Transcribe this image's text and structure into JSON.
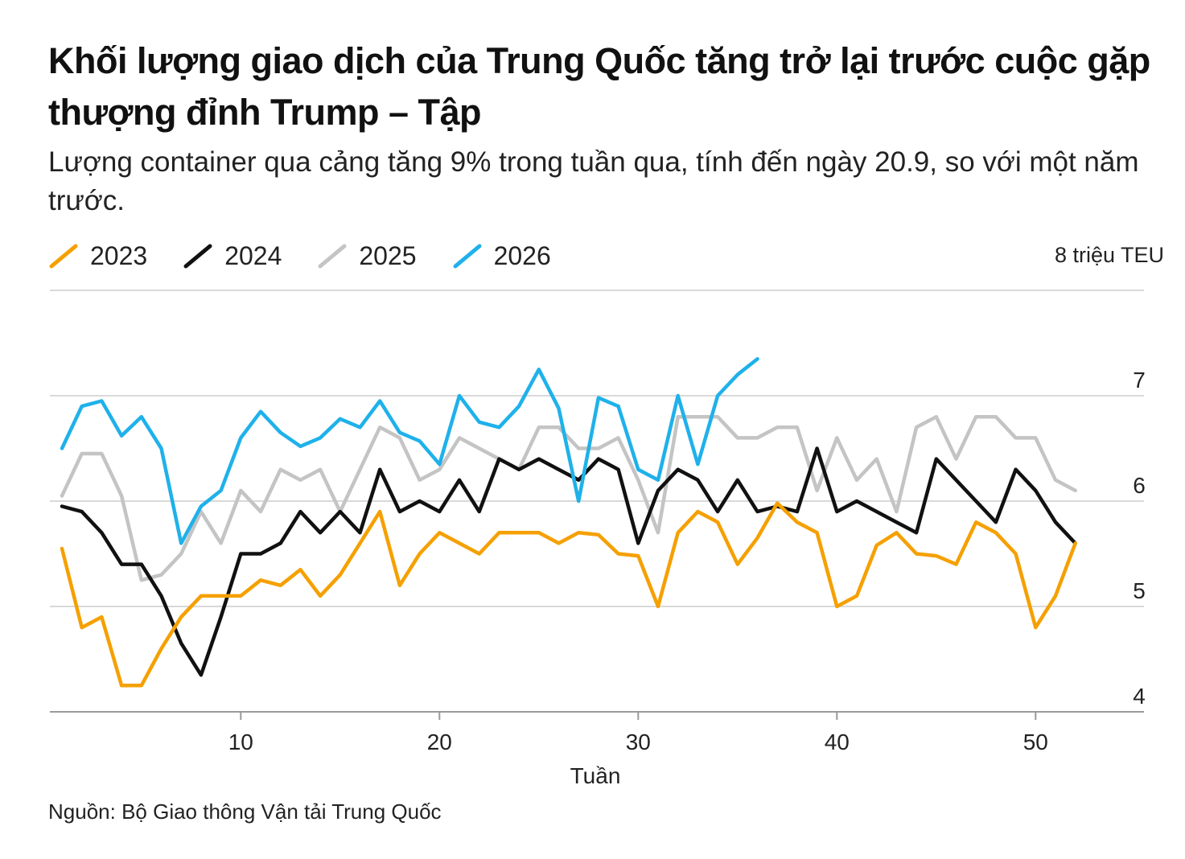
{
  "header": {
    "title": "Khối lượng giao dịch của Trung Quốc tăng trở lại trước cuộc gặp thượng đỉnh Trump – Tập",
    "subtitle": "Lượng container qua cảng tăng 9% trong tuần qua, tính đến ngày 20.9, so với một năm trước.",
    "unit": "8 triệu TEU"
  },
  "footer": {
    "source": "Nguồn: Bộ Giao thông Vận tải Trung Quốc"
  },
  "legend": [
    {
      "label": "2023",
      "color": "#F5A000"
    },
    {
      "label": "2024",
      "color": "#111111"
    },
    {
      "label": "2025",
      "color": "#C4C4C4"
    },
    {
      "label": "2026",
      "color": "#1FB1EA"
    }
  ],
  "chart_data": {
    "type": "line",
    "title": "Khối lượng giao dịch của Trung Quốc tăng trở lại trước cuộc gặp thượng đỉnh Trump – Tập",
    "xlabel": "Tuần",
    "ylabel": "",
    "xlim": [
      1,
      52
    ],
    "ylim": [
      4,
      8
    ],
    "xticks": [
      10,
      20,
      30,
      40,
      50
    ],
    "yticks": [
      4,
      5,
      6,
      7,
      8
    ],
    "ytick_labels": [
      "4",
      "5",
      "6",
      "7",
      ""
    ],
    "grid": true,
    "legend_position": "top-left",
    "series": [
      {
        "name": "2023",
        "color": "#F5A000",
        "x": [
          1,
          2,
          3,
          4,
          5,
          6,
          7,
          8,
          9,
          10,
          11,
          12,
          13,
          14,
          15,
          16,
          17,
          18,
          19,
          20,
          21,
          22,
          23,
          24,
          25,
          26,
          27,
          28,
          29,
          30,
          31,
          32,
          33,
          34,
          35,
          36,
          37,
          38,
          39,
          40,
          41,
          42,
          43,
          44,
          45,
          46,
          47,
          48,
          49,
          50,
          51,
          52
        ],
        "values": [
          5.55,
          4.8,
          4.9,
          4.25,
          4.25,
          4.6,
          4.9,
          5.1,
          5.1,
          5.1,
          5.25,
          5.2,
          5.35,
          5.1,
          5.3,
          5.6,
          5.9,
          5.2,
          5.5,
          5.7,
          5.6,
          5.5,
          5.7,
          5.7,
          5.7,
          5.6,
          5.7,
          5.68,
          5.5,
          5.48,
          5.0,
          5.7,
          5.9,
          5.8,
          5.4,
          5.65,
          5.98,
          5.8,
          5.7,
          5.0,
          5.1,
          5.58,
          5.7,
          5.5,
          5.48,
          5.4,
          5.8,
          5.7,
          5.5,
          4.8,
          5.1,
          5.6
        ]
      },
      {
        "name": "2024",
        "color": "#111111",
        "x": [
          1,
          2,
          3,
          4,
          5,
          6,
          7,
          8,
          9,
          10,
          11,
          12,
          13,
          14,
          15,
          16,
          17,
          18,
          19,
          20,
          21,
          22,
          23,
          24,
          25,
          26,
          27,
          28,
          29,
          30,
          31,
          32,
          33,
          34,
          35,
          36,
          37,
          38,
          39,
          40,
          41,
          42,
          43,
          44,
          45,
          46,
          47,
          48,
          49,
          50,
          51,
          52
        ],
        "values": [
          5.95,
          5.9,
          5.7,
          5.4,
          5.4,
          5.1,
          4.65,
          4.35,
          4.9,
          5.5,
          5.5,
          5.6,
          5.9,
          5.7,
          5.9,
          5.7,
          6.3,
          5.9,
          6.0,
          5.9,
          6.2,
          5.9,
          6.4,
          6.3,
          6.4,
          6.3,
          6.2,
          6.4,
          6.3,
          5.6,
          6.1,
          6.3,
          6.2,
          5.9,
          6.2,
          5.9,
          5.95,
          5.9,
          6.5,
          5.9,
          6.0,
          5.9,
          5.8,
          5.7,
          6.4,
          6.2,
          6.0,
          5.8,
          6.3,
          6.1,
          5.8,
          5.6
        ]
      },
      {
        "name": "2025",
        "color": "#C4C4C4",
        "x": [
          1,
          2,
          3,
          4,
          5,
          6,
          7,
          8,
          9,
          10,
          11,
          12,
          13,
          14,
          15,
          16,
          17,
          18,
          19,
          20,
          21,
          22,
          23,
          24,
          25,
          26,
          27,
          28,
          29,
          30,
          31,
          32,
          33,
          34,
          35,
          36,
          37,
          38,
          39,
          40,
          41,
          42,
          43,
          44,
          45,
          46,
          47,
          48,
          49,
          50,
          51,
          52
        ],
        "values": [
          6.05,
          6.45,
          6.45,
          6.05,
          5.25,
          5.3,
          5.5,
          5.9,
          5.6,
          6.1,
          5.9,
          6.3,
          6.2,
          6.3,
          5.9,
          6.3,
          6.7,
          6.6,
          6.2,
          6.3,
          6.6,
          6.5,
          6.4,
          6.3,
          6.7,
          6.7,
          6.5,
          6.5,
          6.6,
          6.2,
          5.7,
          6.8,
          6.8,
          6.8,
          6.6,
          6.6,
          6.7,
          6.7,
          6.1,
          6.6,
          6.2,
          6.4,
          5.9,
          6.7,
          6.8,
          6.4,
          6.8,
          6.8,
          6.6,
          6.6,
          6.2,
          6.1
        ]
      },
      {
        "name": "2026",
        "color": "#1FB1EA",
        "x": [
          1,
          2,
          3,
          4,
          5,
          6,
          7,
          8,
          9,
          10,
          11,
          12,
          13,
          14,
          15,
          16,
          17,
          18,
          19,
          20,
          21,
          22,
          23,
          24,
          25,
          26,
          27,
          28,
          29,
          30,
          31,
          32,
          33,
          34,
          35,
          36
        ],
        "values": [
          6.5,
          6.9,
          6.95,
          6.62,
          6.8,
          6.5,
          5.6,
          5.95,
          6.1,
          6.6,
          6.85,
          6.65,
          6.52,
          6.6,
          6.78,
          6.7,
          6.95,
          6.65,
          6.57,
          6.35,
          7.0,
          6.75,
          6.7,
          6.9,
          7.25,
          6.88,
          6.0,
          6.98,
          6.9,
          6.3,
          6.2,
          7.0,
          6.35,
          7.0,
          7.2,
          7.35
        ]
      }
    ]
  }
}
